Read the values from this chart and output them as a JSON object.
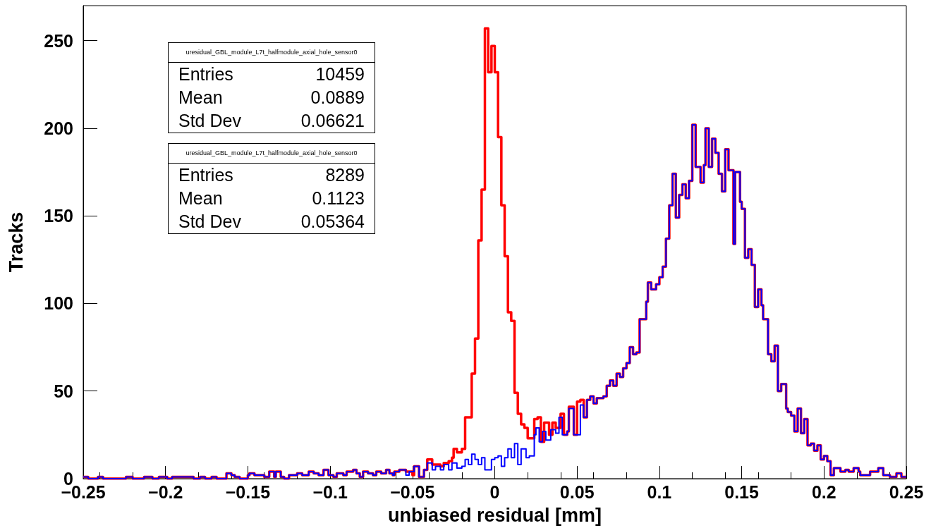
{
  "chart_data": {
    "type": "step",
    "xlabel": "unbiased residual [mm]",
    "ylabel": "Tracks",
    "xlim": [
      -0.25,
      0.25
    ],
    "xticks": [
      -0.25,
      -0.2,
      -0.15,
      -0.1,
      -0.05,
      0,
      0.05,
      0.1,
      0.15,
      0.2,
      0.25
    ],
    "ylim": [
      0,
      270
    ],
    "yticks": [
      0,
      50,
      100,
      150,
      200,
      250
    ],
    "grid": false,
    "marker": "none",
    "line_style": "solid",
    "annotations": [
      "uresidual_GBL_module_L7t_halfmodule_axial_hole_sensor0",
      "Entries\t10459",
      "Mean\t0.0889",
      "Std Dev\t0.06621",
      "uresidual_GBL_module_L7t_halfmodule_axial_hole_sensor0",
      "Entries\t8289",
      "Mean\t0.1123",
      "Std Dev\t0.05364"
    ],
    "series": [
      {
        "color": "#ff0000",
        "x": [
          -0.25,
          -0.247,
          -0.241,
          -0.238,
          -0.224,
          -0.22,
          -0.213,
          -0.208,
          -0.204,
          -0.199,
          -0.196,
          -0.183,
          -0.179,
          -0.176,
          -0.172,
          -0.169,
          -0.163,
          -0.16,
          -0.158,
          -0.155,
          -0.15,
          -0.149,
          -0.146,
          -0.14,
          -0.137,
          -0.134,
          -0.133,
          -0.13,
          -0.128,
          -0.125,
          -0.12,
          -0.117,
          -0.113,
          -0.11,
          -0.107,
          -0.104,
          -0.101,
          -0.098,
          -0.096,
          -0.092,
          -0.09,
          -0.086,
          -0.084,
          -0.082,
          -0.08,
          -0.077,
          -0.074,
          -0.072,
          -0.069,
          -0.066,
          -0.064,
          -0.062,
          -0.061,
          -0.058,
          -0.054,
          -0.05,
          -0.049,
          -0.046,
          -0.043,
          -0.041,
          -0.038,
          -0.036,
          -0.033,
          -0.031,
          -0.028,
          -0.026,
          -0.025,
          -0.023,
          -0.02,
          -0.018,
          -0.014,
          -0.012,
          -0.01,
          -0.008,
          -0.006,
          -0.004,
          -0.002,
          0,
          0.002,
          0.004,
          0.006,
          0.008,
          0.01,
          0.012,
          0.014,
          0.016,
          0.018,
          0.02,
          0.024,
          0.026,
          0.028,
          0.03,
          0.033,
          0.035,
          0.037,
          0.04,
          0.042,
          0.044,
          0.045,
          0.048,
          0.05,
          0.052,
          0.054,
          0.056,
          0.058,
          0.06,
          0.062,
          0.066,
          0.068,
          0.07,
          0.072,
          0.074,
          0.076,
          0.078,
          0.08,
          0.082,
          0.084,
          0.086,
          0.088,
          0.092,
          0.093,
          0.095,
          0.098,
          0.1,
          0.102,
          0.104,
          0.106,
          0.108,
          0.11,
          0.112,
          0.114,
          0.116,
          0.118,
          0.12,
          0.122,
          0.125,
          0.127,
          0.128,
          0.13,
          0.132,
          0.134,
          0.136,
          0.138,
          0.14,
          0.142,
          0.145,
          0.146,
          0.149,
          0.15,
          0.152,
          0.154,
          0.156,
          0.158,
          0.16,
          0.162,
          0.163,
          0.166,
          0.168,
          0.17,
          0.172,
          0.174,
          0.177,
          0.178,
          0.18,
          0.182,
          0.184,
          0.186,
          0.188,
          0.19,
          0.192,
          0.194,
          0.196,
          0.198,
          0.2,
          0.202,
          0.204,
          0.206,
          0.21,
          0.213,
          0.215,
          0.218,
          0.221,
          0.222,
          0.228,
          0.23,
          0.233,
          0.236,
          0.24,
          0.244,
          0.247,
          0.25
        ],
        "values": [
          1,
          0,
          1,
          0,
          1,
          0,
          1,
          0,
          1,
          0,
          1,
          0,
          1,
          0,
          1,
          0,
          3,
          2,
          1,
          0,
          2,
          3,
          2,
          1,
          4,
          1,
          4,
          1,
          0,
          2,
          3,
          2,
          4,
          3,
          2,
          5,
          2,
          1,
          3,
          2,
          4,
          5,
          3,
          1,
          4,
          3,
          2,
          4,
          3,
          5,
          3,
          2,
          4,
          5,
          4,
          2,
          7,
          1,
          5,
          11,
          8,
          8,
          7,
          9,
          10,
          12,
          17,
          15,
          17,
          35,
          60,
          80,
          136,
          165,
          257,
          232,
          247,
          232,
          195,
          156,
          127,
          95,
          90,
          49,
          37,
          31,
          29,
          23,
          34,
          35,
          21,
          32,
          25,
          32,
          29,
          37,
          25,
          27,
          41,
          25,
          44,
          45,
          35,
          45,
          47,
          43,
          46,
          47,
          53,
          56,
          53,
          60,
          58,
          63,
          66,
          75,
          71,
          72,
          91,
          101,
          112,
          108,
          111,
          115,
          121,
          137,
          156,
          174,
          149,
          162,
          168,
          160,
          170,
          202,
          178,
          169,
          179,
          200,
          178,
          194,
          186,
          174,
          164,
          188,
          176,
          134,
          175,
          158,
          154,
          126,
          131,
          122,
          98,
          108,
          99,
          91,
          71,
          67,
          76,
          50,
          54,
          40,
          38,
          36,
          27,
          40,
          26,
          34,
          19,
          20,
          16,
          19,
          11,
          13,
          10,
          2,
          6,
          4,
          5,
          4,
          6,
          4,
          2,
          4,
          4,
          6,
          2,
          1,
          3,
          1,
          1
        ]
      },
      {
        "color": "#0000ff",
        "x": [
          -0.25,
          -0.247,
          -0.241,
          -0.238,
          -0.224,
          -0.22,
          -0.213,
          -0.208,
          -0.204,
          -0.199,
          -0.196,
          -0.183,
          -0.179,
          -0.176,
          -0.172,
          -0.169,
          -0.163,
          -0.16,
          -0.158,
          -0.155,
          -0.15,
          -0.149,
          -0.146,
          -0.14,
          -0.137,
          -0.134,
          -0.133,
          -0.13,
          -0.128,
          -0.125,
          -0.12,
          -0.117,
          -0.113,
          -0.11,
          -0.107,
          -0.104,
          -0.101,
          -0.098,
          -0.096,
          -0.092,
          -0.09,
          -0.086,
          -0.084,
          -0.082,
          -0.08,
          -0.077,
          -0.074,
          -0.072,
          -0.069,
          -0.066,
          -0.064,
          -0.062,
          -0.061,
          -0.058,
          -0.054,
          -0.052,
          -0.049,
          -0.046,
          -0.043,
          -0.041,
          -0.038,
          -0.036,
          -0.033,
          -0.031,
          -0.028,
          -0.026,
          -0.023,
          -0.02,
          -0.018,
          -0.016,
          -0.014,
          -0.012,
          -0.01,
          -0.008,
          -0.006,
          -0.002,
          0,
          0.002,
          0.004,
          0.006,
          0.008,
          0.01,
          0.012,
          0.014,
          0.016,
          0.019,
          0.021,
          0.024,
          0.025,
          0.027,
          0.029,
          0.031,
          0.034,
          0.037,
          0.039,
          0.041,
          0.044,
          0.045,
          0.048,
          0.052,
          0.054,
          0.056,
          0.058,
          0.06,
          0.062,
          0.066,
          0.068,
          0.07,
          0.072,
          0.074,
          0.076,
          0.078,
          0.08,
          0.082,
          0.084,
          0.086,
          0.088,
          0.092,
          0.093,
          0.095,
          0.098,
          0.1,
          0.102,
          0.104,
          0.106,
          0.108,
          0.11,
          0.112,
          0.114,
          0.116,
          0.118,
          0.12,
          0.122,
          0.125,
          0.127,
          0.128,
          0.13,
          0.132,
          0.134,
          0.136,
          0.138,
          0.14,
          0.142,
          0.145,
          0.146,
          0.149,
          0.15,
          0.152,
          0.154,
          0.156,
          0.158,
          0.16,
          0.162,
          0.163,
          0.166,
          0.168,
          0.17,
          0.172,
          0.174,
          0.177,
          0.178,
          0.18,
          0.182,
          0.184,
          0.186,
          0.188,
          0.19,
          0.192,
          0.194,
          0.196,
          0.198,
          0.2,
          0.202,
          0.204,
          0.206,
          0.21,
          0.213,
          0.215,
          0.218,
          0.221,
          0.222,
          0.228,
          0.23,
          0.233,
          0.236,
          0.24,
          0.244,
          0.247,
          0.25
        ],
        "values": [
          1,
          0,
          1,
          0,
          1,
          0,
          1,
          0,
          1,
          0,
          1,
          0,
          1,
          0,
          1,
          0,
          3,
          2,
          1,
          0,
          2,
          3,
          2,
          1,
          4,
          1,
          4,
          1,
          0,
          2,
          3,
          2,
          4,
          3,
          2,
          5,
          2,
          1,
          3,
          2,
          4,
          5,
          3,
          1,
          4,
          3,
          2,
          4,
          3,
          5,
          3,
          2,
          4,
          5,
          2,
          4,
          7,
          1,
          5,
          9,
          5,
          7,
          5,
          8,
          5,
          9,
          6,
          7,
          11,
          8,
          14,
          11,
          8,
          12,
          5,
          11,
          12,
          13,
          7,
          12,
          17,
          12,
          20,
          8,
          17,
          12,
          13,
          25,
          29,
          21,
          27,
          22,
          28,
          26,
          35,
          25,
          27,
          40,
          25,
          42,
          35,
          45,
          47,
          43,
          46,
          47,
          53,
          56,
          53,
          60,
          58,
          63,
          66,
          75,
          71,
          72,
          91,
          101,
          112,
          108,
          111,
          115,
          121,
          137,
          156,
          174,
          149,
          162,
          168,
          160,
          170,
          202,
          178,
          169,
          179,
          200,
          178,
          194,
          186,
          174,
          164,
          188,
          176,
          134,
          175,
          158,
          154,
          126,
          131,
          122,
          98,
          108,
          99,
          91,
          71,
          67,
          76,
          50,
          54,
          40,
          38,
          36,
          27,
          40,
          26,
          34,
          19,
          20,
          16,
          19,
          11,
          13,
          10,
          2,
          6,
          4,
          5,
          4,
          6,
          4,
          2,
          4,
          4,
          6,
          2,
          1,
          3,
          1,
          1
        ]
      }
    ]
  }
}
